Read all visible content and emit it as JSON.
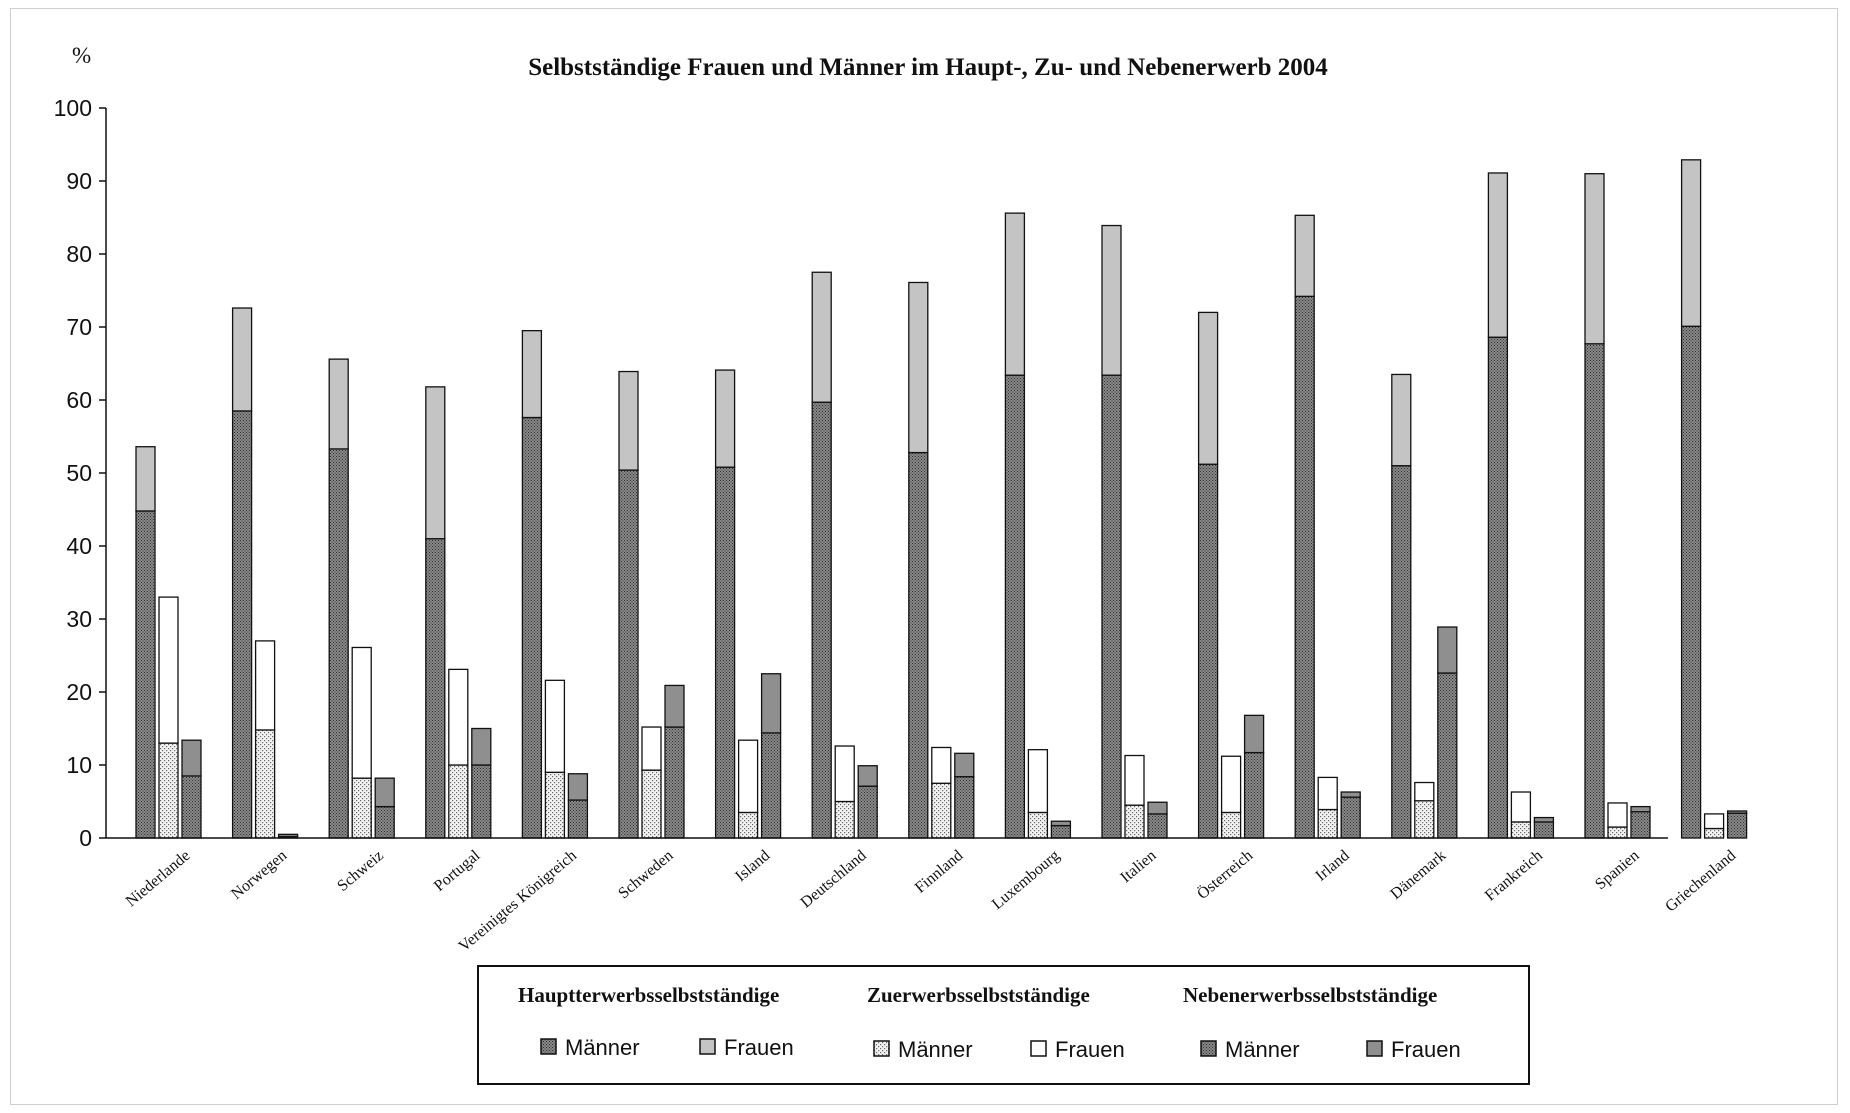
{
  "chart_data": {
    "type": "bar",
    "stacked": true,
    "title": "Selbstständige Frauen und Männer im Haupt-, Zu- und Nebenerwerb 2004",
    "ylabel": "%",
    "ylim": [
      0,
      100
    ],
    "yticks": [
      0,
      10,
      20,
      30,
      40,
      50,
      60,
      70,
      80,
      90,
      100
    ],
    "grid": false,
    "legend_position": "bottom",
    "categories": [
      "Niederlande",
      "Norwegen",
      "Schweiz",
      "Portugal",
      "Vereinigtes Königreich",
      "Schweden",
      "Island",
      "Deutschland",
      "Finnland",
      "Luxembourg",
      "Italien",
      "Österreich",
      "Irland",
      "Dänemark",
      "Frankreich",
      "Spanien",
      "Griechenland"
    ],
    "groups": [
      {
        "name": "Hauptterwerbsselbstständige",
        "series": [
          {
            "name": "Männer",
            "color": "#6e6e6e",
            "pattern": "dots-dense",
            "values": [
              44.8,
              58.5,
              53.3,
              41,
              57.6,
              50.4,
              50.8,
              59.7,
              52.8,
              63.4,
              63.4,
              51.2,
              74.2,
              51,
              68.6,
              67.7,
              70.1
            ]
          },
          {
            "name": "Frauen",
            "color": "#c4c4c4",
            "values": [
              8.8,
              14.1,
              12.3,
              20.8,
              11.9,
              13.5,
              13.3,
              17.8,
              23.3,
              22.2,
              20.5,
              20.8,
              11.1,
              12.5,
              22.5,
              23.3,
              22.8
            ]
          }
        ]
      },
      {
        "name": "Zuerwerbsselbstständige",
        "series": [
          {
            "name": "Männer",
            "color": "#d6d6d6",
            "pattern": "dots-sparse",
            "values": [
              13,
              14.8,
              8.2,
              10,
              9,
              9.3,
              3.5,
              5,
              7.5,
              3.5,
              4.5,
              3.5,
              3.9,
              5.1,
              2.2,
              1.5,
              1.3
            ]
          },
          {
            "name": "Frauen",
            "color": "#ffffff",
            "values": [
              20,
              12.2,
              17.9,
              13.1,
              12.6,
              5.9,
              9.9,
              7.6,
              4.9,
              8.6,
              6.8,
              7.7,
              4.4,
              2.5,
              4.1,
              3.3,
              2
            ]
          }
        ]
      },
      {
        "name": "Nebenerwerbsselbstständige",
        "series": [
          {
            "name": "Männer",
            "color": "#707070",
            "pattern": "dots-dense",
            "values": [
              8.5,
              0.2,
              4.3,
              10,
              5.2,
              15.2,
              14.4,
              7.1,
              8.4,
              1.7,
              3.3,
              11.7,
              5.6,
              22.6,
              2.2,
              3.6,
              3.4
            ]
          },
          {
            "name": "Frauen",
            "color": "#8f8f8f",
            "values": [
              4.9,
              0.3,
              3.9,
              5,
              3.6,
              5.7,
              8.1,
              2.8,
              3.2,
              0.6,
              1.6,
              5.1,
              0.7,
              6.3,
              0.6,
              0.7,
              0.3
            ]
          }
        ]
      }
    ]
  }
}
